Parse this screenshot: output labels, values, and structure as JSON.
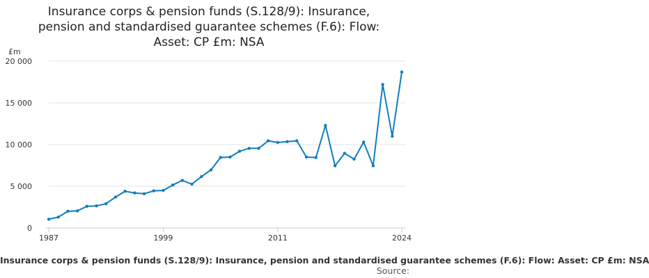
{
  "chart_data": {
    "type": "line",
    "title_lines": [
      "Insurance corps & pension funds (S.128/9): Insurance,",
      "pension and standardised guarantee schemes (F.6): Flow:",
      "Asset: CP £m: NSA"
    ],
    "ylabel": "£m",
    "legend_text": "Insurance corps & pension funds (S.128/9): Insurance, pension and standardised guarantee schemes (F.6): Flow: Asset: CP £m: NSA",
    "source_label": "Source:",
    "ylim": [
      0,
      20000
    ],
    "xlim": [
      1987,
      2024
    ],
    "y_ticks": [
      {
        "value": 0,
        "label": "0"
      },
      {
        "value": 5000,
        "label": "5 000"
      },
      {
        "value": 10000,
        "label": "10 000"
      },
      {
        "value": 15000,
        "label": "15 000"
      },
      {
        "value": 20000,
        "label": "20 000"
      }
    ],
    "x_ticks": [
      {
        "value": 1987,
        "label": "1987"
      },
      {
        "value": 1999,
        "label": "1999"
      },
      {
        "value": 2011,
        "label": "2011"
      },
      {
        "value": 2024,
        "label": "2024"
      }
    ],
    "grid": true,
    "line_color": "#0f7dbd",
    "series": [
      {
        "x": [
          1987,
          1988,
          1989,
          1990,
          1991,
          1992,
          1993,
          1994,
          1995,
          1996,
          1997,
          1998,
          1999,
          2000,
          2001,
          2002,
          2003,
          2004,
          2005,
          2006,
          2007,
          2008,
          2009,
          2010,
          2011,
          2012,
          2013,
          2014,
          2015,
          2016,
          2017,
          2018,
          2019,
          2020,
          2021,
          2022,
          2023,
          2024
        ],
        "values": [
          1050,
          1300,
          2000,
          2050,
          2600,
          2650,
          2900,
          3700,
          4400,
          4200,
          4100,
          4450,
          4500,
          5150,
          5700,
          5250,
          6150,
          6950,
          8450,
          8500,
          9200,
          9550,
          9550,
          10450,
          10250,
          10350,
          10450,
          8500,
          8450,
          12300,
          7450,
          8950,
          8250,
          10300,
          7450,
          17200,
          11000,
          18700
        ]
      }
    ]
  }
}
